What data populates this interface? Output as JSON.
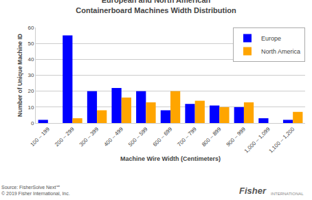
{
  "chart_data": {
    "type": "bar",
    "title": "European and North American\nContainerboard Machines Width Distribution",
    "xlabel": "Machine Wire Width (Centimeters)",
    "ylabel": "Number of Unique Machine ID",
    "categories": [
      "100 – 199",
      "200 – 299",
      "300 – 399",
      "400 – 499",
      "500 – 599",
      "600 – 699",
      "700 – 799",
      "800 – 899",
      "900 – 999",
      "1,000 – 1,099",
      "1,100 – 1,200"
    ],
    "series": [
      {
        "name": "Europe",
        "color": "#0000FF",
        "values": [
          2,
          55,
          20,
          22,
          20,
          8,
          12,
          11,
          10,
          3,
          2
        ]
      },
      {
        "name": "North America",
        "color": "#FFA500",
        "values": [
          0,
          3,
          8,
          16,
          13,
          20,
          14,
          10,
          13,
          0,
          7
        ]
      }
    ],
    "ylim": [
      0,
      60
    ],
    "yticks": [
      0,
      10,
      20,
      30,
      40,
      50,
      60
    ],
    "grid": true,
    "legend": "upper right",
    "annotations": [
      "Source: FisherSolve Next℠\n© 2019 Fisher International, Inc.",
      "Fisher",
      "INTERNATIONAL"
    ]
  }
}
